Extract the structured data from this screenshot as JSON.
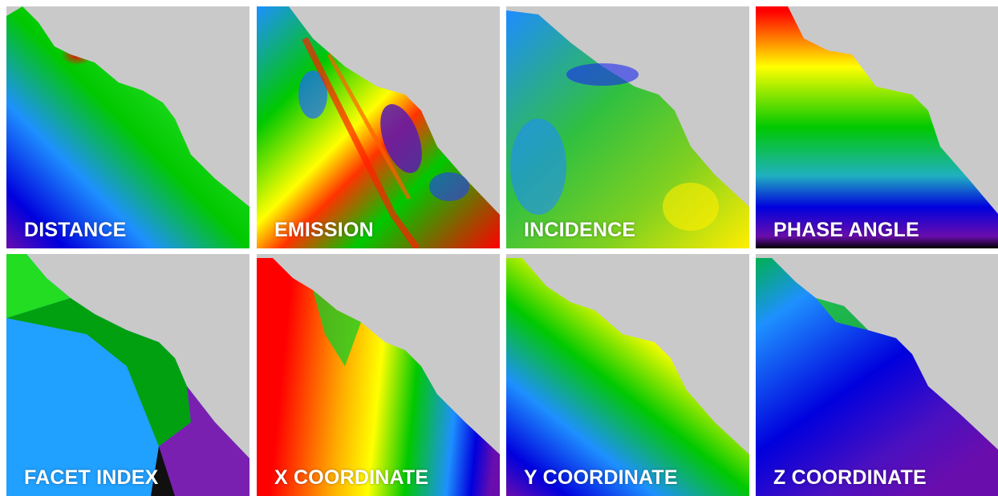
{
  "panels": [
    {
      "label": "DISTANCE"
    },
    {
      "label": "EMISSION"
    },
    {
      "label": "INCIDENCE"
    },
    {
      "label": "PHASE ANGLE"
    },
    {
      "label": "FACET INDEX"
    },
    {
      "label": "X COORDINATE"
    },
    {
      "label": "Y COORDINATE"
    },
    {
      "label": "Z COORDINATE"
    }
  ],
  "colors": {
    "background_sky": "#c9c9c9",
    "label_text": "#ffffff",
    "colormap": [
      "#6a0dad",
      "#0000dd",
      "#1e90ff",
      "#00c800",
      "#ffff00",
      "#ff8c00",
      "#ff0000"
    ]
  }
}
